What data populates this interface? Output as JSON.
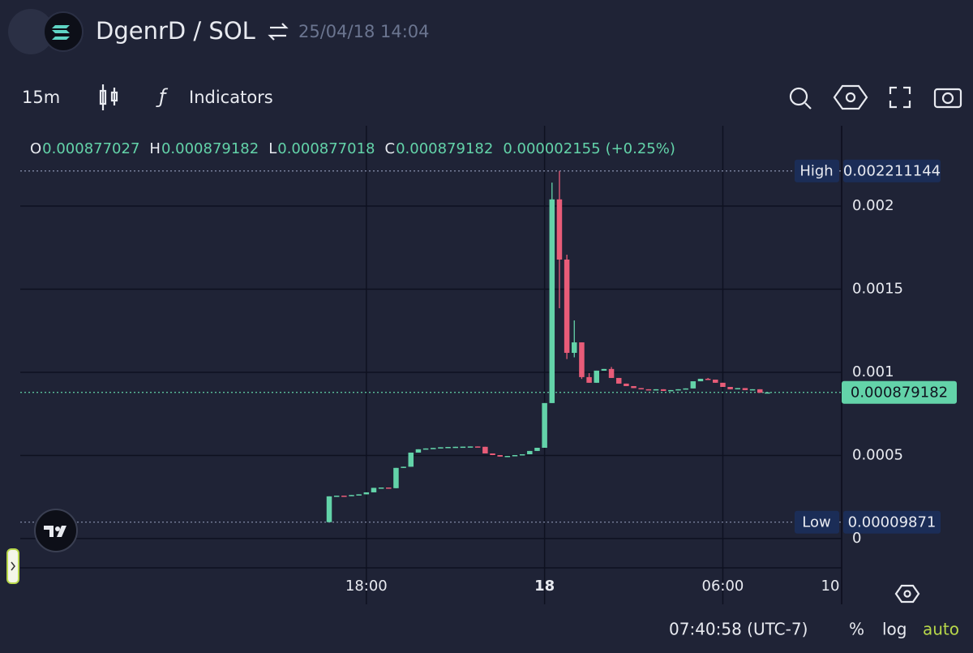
{
  "header": {
    "pair": "DgenrD / SOL",
    "timestamp": "25/04/18 14:04"
  },
  "toolbar": {
    "interval": "15m",
    "indicators": "Indicators"
  },
  "chart_data": {
    "type": "candlestick",
    "ohlc_legend": {
      "open_key": "O",
      "open": 0.000877027,
      "high_key": "H",
      "high": 0.000879182,
      "low_key": "L",
      "low": 0.000877018,
      "close_key": "C",
      "close": 0.000879182,
      "change": 2.155e-06,
      "change_pct": {
        "value": 0.25,
        "label": "(+0.25%)"
      }
    },
    "up_color": "#63d3a9",
    "down_color": "#e85c78",
    "candles": {
      "x": [
        16.75,
        17,
        17.25,
        17.5,
        17.75,
        18,
        18.25,
        18.5,
        18.75,
        19,
        19.25,
        19.5,
        19.75,
        20,
        20.25,
        20.5,
        20.75,
        21,
        21.25,
        21.5,
        21.75,
        22,
        22.25,
        22.5,
        22.75,
        23,
        23.25,
        23.5,
        23.75,
        24,
        24.25,
        24.5,
        24.75,
        25,
        25.25,
        25.5,
        25.75,
        26,
        26.25,
        26.5,
        26.75,
        27,
        27.25,
        27.5,
        27.75,
        28,
        28.25,
        28.5,
        28.75,
        29,
        29.25,
        29.5,
        29.75,
        30,
        30.25,
        30.5,
        30.75,
        31,
        31.25,
        31.5
      ],
      "open": [
        9.871e-05,
        0.000254,
        0.000258,
        0.000257,
        0.000262,
        0.000266,
        0.000278,
        0.000305,
        0.000307,
        0.000303,
        0.000425,
        0.000432,
        0.000517,
        0.000537,
        0.000542,
        0.000545,
        0.000549,
        0.000551,
        0.000552,
        0.000553,
        0.000554,
        0.000552,
        0.000512,
        0.000502,
        0.000493,
        0.000497,
        0.000502,
        0.000507,
        0.000527,
        0.000546,
        0.000815,
        0.00204,
        0.001678,
        0.001117,
        0.00118,
        0.000971,
        0.000937,
        0.00101,
        0.00102,
        0.000966,
        0.000932,
        0.000917,
        0.000905,
        0.000898,
        0.000893,
        0.000898,
        0.000888,
        0.000893,
        0.000898,
        0.000903,
        0.000946,
        0.000961,
        0.000956,
        0.000937,
        0.000912,
        0.000898,
        0.000905,
        0.000893,
        0.000898,
        0.000877027
      ],
      "high": [
        0.000254,
        0.000258,
        0.000258,
        0.000262,
        0.000266,
        0.000278,
        0.000305,
        0.000307,
        0.000307,
        0.000425,
        0.000432,
        0.000517,
        0.000537,
        0.000542,
        0.000545,
        0.000549,
        0.000551,
        0.000552,
        0.000553,
        0.000554,
        0.000554,
        0.000552,
        0.000512,
        0.000502,
        0.000497,
        0.000502,
        0.000507,
        0.000527,
        0.000546,
        0.000815,
        0.002141,
        0.002211144,
        0.001707,
        0.001312,
        0.00118,
        0.000995,
        0.00101,
        0.00102,
        0.001032,
        0.000966,
        0.000932,
        0.000917,
        0.000905,
        0.000898,
        0.000898,
        0.000898,
        0.000893,
        0.000898,
        0.000903,
        0.000946,
        0.000961,
        0.000966,
        0.000956,
        0.000937,
        0.000912,
        0.000905,
        0.000905,
        0.000898,
        0.000898,
        0.000879182
      ],
      "low": [
        9.871e-05,
        0.000254,
        0.000257,
        0.000257,
        0.000262,
        0.000266,
        0.000278,
        0.000305,
        0.000303,
        0.000303,
        0.000425,
        0.000432,
        0.000517,
        0.000537,
        0.000542,
        0.000545,
        0.000549,
        0.000551,
        0.000552,
        0.000553,
        0.000552,
        0.000512,
        0.000502,
        0.000493,
        0.000493,
        0.000497,
        0.000502,
        0.000507,
        0.000527,
        0.000546,
        0.000815,
        0.001385,
        0.00108,
        0.00109,
        0.00096,
        0.000937,
        0.000937,
        0.00101,
        0.000966,
        0.000932,
        0.000917,
        0.000905,
        0.000898,
        0.000893,
        0.000893,
        0.000888,
        0.000888,
        0.000893,
        0.000898,
        0.000903,
        0.000946,
        0.000956,
        0.000937,
        0.000912,
        0.000898,
        0.000898,
        0.000893,
        0.000893,
        0.000877,
        0.000877018
      ],
      "close": [
        0.000254,
        0.000258,
        0.000257,
        0.000262,
        0.000266,
        0.000278,
        0.000305,
        0.000307,
        0.000303,
        0.000425,
        0.000432,
        0.000517,
        0.000537,
        0.000542,
        0.000545,
        0.000549,
        0.000551,
        0.000552,
        0.000553,
        0.000554,
        0.000552,
        0.000512,
        0.000502,
        0.000493,
        0.000497,
        0.000502,
        0.000507,
        0.000527,
        0.000546,
        0.000815,
        0.00204,
        0.001678,
        0.001117,
        0.00118,
        0.000971,
        0.000937,
        0.00101,
        0.00102,
        0.000966,
        0.000932,
        0.000917,
        0.000905,
        0.000898,
        0.000893,
        0.000898,
        0.000888,
        0.000893,
        0.000898,
        0.000903,
        0.000946,
        0.000961,
        0.000956,
        0.000937,
        0.000912,
        0.000898,
        0.000905,
        0.000893,
        0.000898,
        0.000877,
        0.000879182
      ]
    },
    "price_lines": [
      {
        "label": "High",
        "value": 0.002211144
      },
      {
        "label": "Low",
        "value": 9.871e-05
      },
      {
        "value": 0.000879182,
        "color": "#63d3a9"
      }
    ],
    "xlim": [
      6.35,
      34
    ],
    "xticks": [
      {
        "value": 18,
        "label": "18:00"
      },
      {
        "value": 24,
        "label": "18"
      },
      {
        "value": 30,
        "label": "06:00"
      },
      {
        "value": 34,
        "label": "10"
      }
    ],
    "ylim": [
      -0.000176,
      0.002483
    ],
    "yticks": [
      0,
      0.0005,
      0.001,
      0.0015,
      0.002
    ],
    "grid": true
  },
  "footer": {
    "time": "07:40:58 (UTC-7)",
    "percent": "%",
    "log": "log",
    "auto": "auto"
  }
}
